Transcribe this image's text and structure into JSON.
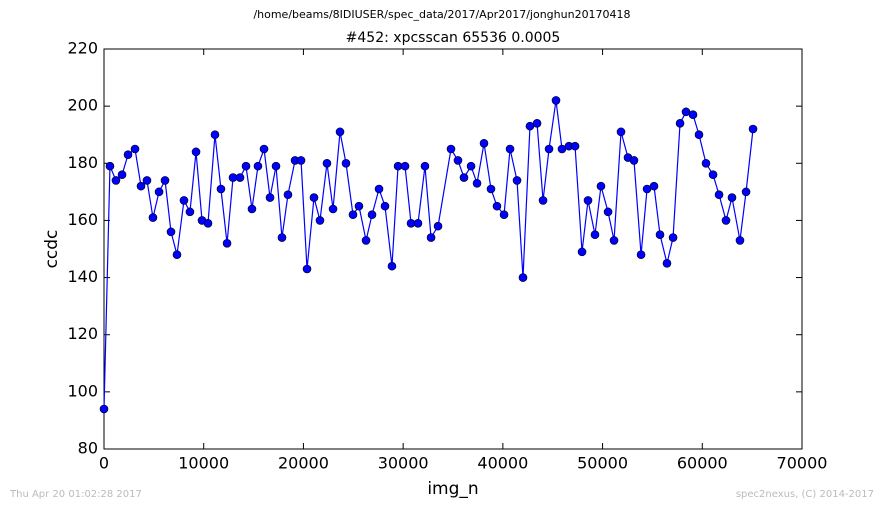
{
  "chart_data": {
    "type": "line",
    "suptitle": "/home/beams/8IDIUSER/spec_data/2017/Apr2017/jonghun20170418",
    "title": "#452: xpcsscan 65536 0.0005",
    "x_label": "img_n",
    "y_label": "ccdc",
    "color": "#0000ff",
    "marker_edge_color": "#000000",
    "x": [
      0,
      600,
      1200,
      1810,
      2410,
      3110,
      3710,
      4310,
      4910,
      5520,
      6120,
      6720,
      7320,
      8020,
      8620,
      9230,
      9830,
      10430,
      11130,
      11730,
      12340,
      12940,
      13640,
      14240,
      14840,
      15440,
      16050,
      16650,
      17250,
      17850,
      18450,
      19160,
      19760,
      20360,
      21060,
      21660,
      22360,
      22970,
      23670,
      24270,
      24970,
      25570,
      26280,
      26880,
      27580,
      28180,
      28880,
      29490,
      30190,
      30790,
      31490,
      32190,
      32800,
      33500,
      34800,
      35500,
      36100,
      36810,
      37410,
      38110,
      38810,
      39410,
      40120,
      40720,
      41420,
      42020,
      42720,
      43430,
      44030,
      44630,
      45330,
      45930,
      46630,
      47240,
      47940,
      48540,
      49240,
      49840,
      50550,
      51150,
      51850,
      52550,
      53150,
      53860,
      54460,
      55160,
      55760,
      56460,
      57070,
      57770,
      58370,
      59070,
      59670,
      60370,
      61080,
      61680,
      62380,
      62980,
      63780,
      64390,
      65090
    ],
    "values": [
      94,
      179,
      174,
      176,
      183,
      185,
      172,
      174,
      161,
      170,
      174,
      156,
      148,
      167,
      163,
      184,
      160,
      159,
      190,
      171,
      152,
      175,
      175,
      179,
      164,
      179,
      185,
      168,
      179,
      154,
      169,
      181,
      181,
      143,
      168,
      160,
      180,
      164,
      191,
      180,
      162,
      165,
      153,
      162,
      171,
      165,
      144,
      179,
      179,
      159,
      159,
      179,
      154,
      158,
      185,
      181,
      175,
      179,
      173,
      187,
      171,
      165,
      162,
      185,
      174,
      140,
      193,
      194,
      167,
      185,
      202,
      185,
      186,
      186,
      149,
      167,
      155,
      172,
      163,
      153,
      191,
      182,
      181,
      148,
      171,
      172,
      155,
      145,
      154,
      194,
      198,
      197,
      190,
      180,
      176,
      169,
      160,
      168,
      153,
      170,
      192
    ],
    "xlim": [
      0,
      70000
    ],
    "xticks": [
      0,
      10000,
      20000,
      30000,
      40000,
      50000,
      60000,
      70000
    ],
    "ylim": [
      80,
      220
    ],
    "yticks": [
      80,
      100,
      120,
      140,
      160,
      180,
      200,
      220
    ],
    "grid": false
  },
  "footer": {
    "left": "Thu Apr 20 01:02:28 2017",
    "right": "spec2nexus, (C) 2014-2017"
  }
}
